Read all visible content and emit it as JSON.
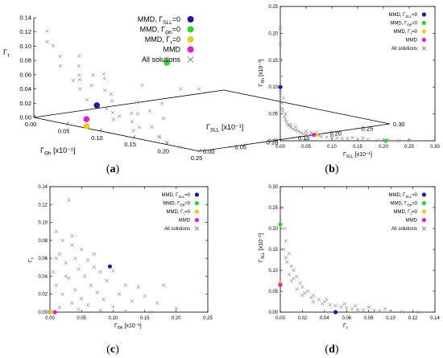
{
  "legend_entries": [
    {
      "main": "MMD, Γ",
      "sub": "SLL",
      "post": "=0",
      "color": "#1a1aa6"
    },
    {
      "main": "MMD, Γ",
      "sub": "Θh",
      "post": "=0",
      "color": "#2bd62b"
    },
    {
      "main": "MMD, Γ",
      "sub": "τ",
      "post": "=0",
      "color": "#f2c81a"
    },
    {
      "main": "MMD",
      "sub": "",
      "post": "",
      "color": "#e020c8"
    },
    {
      "main": "All solutions",
      "sub": "",
      "post": "",
      "color": "#888888",
      "marker": "x"
    }
  ],
  "chart_data": [
    {
      "panel": "(a)",
      "type": "scatter",
      "projection": "3d",
      "axes": {
        "z": {
          "label": "Γτ",
          "range": [
            0,
            0.14
          ],
          "ticks": [
            "0.00",
            "0.02",
            "0.04",
            "0.06",
            "0.08",
            "0.10",
            "0.12",
            "0.14"
          ]
        },
        "x": {
          "label": "ΓΘh [x10⁻¹]",
          "range": [
            0,
            0.25
          ],
          "ticks": [
            "0.00",
            "0.05",
            "0.10",
            "0.15",
            "0.20",
            "0.25"
          ]
        },
        "y": {
          "label": "ΓSLL [x10⁻¹]",
          "range": [
            0,
            0.3
          ],
          "ticks": [
            "0.00",
            "0.05",
            "0.10",
            "0.15",
            "0.20",
            "0.25",
            "0.30"
          ]
        }
      },
      "series": [
        {
          "name": "MMD, ΓSLL=0",
          "points": [
            [
              0.095,
              0.0,
              0.035
            ]
          ]
        },
        {
          "name": "MMD, ΓΘh=0",
          "points": [
            [
              0.0,
              0.21,
              0.05
            ]
          ]
        },
        {
          "name": "MMD, Γτ=0",
          "points": [
            [
              0.07,
              0.01,
              0.0
            ]
          ]
        },
        {
          "name": "MMD",
          "points": [
            [
              0.065,
              0.015,
              0.008
            ]
          ]
        },
        {
          "name": "All solutions",
          "marker": "x",
          "points": [
            [
              0.02,
              0.0,
              0.125
            ],
            [
              0.03,
              0.01,
              0.09
            ],
            [
              0.01,
              0.02,
              0.1
            ],
            [
              0.04,
              0.0,
              0.08
            ],
            [
              0.05,
              0.02,
              0.06
            ],
            [
              0.02,
              0.05,
              0.07
            ],
            [
              0.06,
              0.01,
              0.05
            ],
            [
              0.03,
              0.04,
              0.06
            ],
            [
              0.08,
              0.0,
              0.04
            ],
            [
              0.01,
              0.1,
              0.05
            ],
            [
              0.05,
              0.06,
              0.04
            ],
            [
              0.1,
              0.01,
              0.03
            ],
            [
              0.04,
              0.08,
              0.03
            ],
            [
              0.12,
              0.0,
              0.02
            ],
            [
              0.07,
              0.05,
              0.03
            ],
            [
              0.02,
              0.15,
              0.03
            ],
            [
              0.09,
              0.03,
              0.02
            ],
            [
              0.15,
              0.0,
              0.01
            ],
            [
              0.06,
              0.1,
              0.02
            ],
            [
              0.11,
              0.04,
              0.01
            ],
            [
              0.03,
              0.2,
              0.02
            ],
            [
              0.18,
              0.01,
              0.005
            ],
            [
              0.08,
              0.08,
              0.01
            ],
            [
              0.13,
              0.05,
              0.005
            ],
            [
              0.01,
              0.25,
              0.01
            ],
            [
              0.22,
              0.0,
              0.0
            ],
            [
              0.05,
              0.15,
              0.01
            ],
            [
              0.1,
              0.1,
              0.005
            ],
            [
              0.16,
              0.03,
              0.0
            ],
            [
              0.03,
              0.08,
              0.05
            ],
            [
              0.07,
              0.02,
              0.07
            ],
            [
              0.04,
              0.03,
              0.09
            ],
            [
              0.02,
              0.07,
              0.04
            ],
            [
              0.09,
              0.06,
              0.015
            ],
            [
              0.14,
              0.02,
              0.01
            ],
            [
              0.06,
              0.12,
              0.005
            ],
            [
              0.02,
              0.0,
              0.11
            ],
            [
              0.05,
              0.01,
              0.06
            ],
            [
              0.11,
              0.02,
              0.02
            ],
            [
              0.19,
              0.01,
              0.0
            ]
          ]
        }
      ]
    },
    {
      "panel": "(b)",
      "type": "scatter",
      "xlabel": "ΓSLL [x10⁻¹]",
      "ylabel": "ΓΘh [x10⁻¹]",
      "xlim": [
        0,
        0.3
      ],
      "ylim": [
        0,
        0.25
      ],
      "xticks": [
        "0.00",
        "0.05",
        "0.10",
        "0.15",
        "0.20",
        "0.25",
        "0.30"
      ],
      "yticks": [
        "0.00",
        "0.05",
        "0.10",
        "0.15",
        "0.20",
        "0.25"
      ],
      "series": [
        {
          "name": "MMD, ΓSLL=0",
          "points": [
            [
              0.0,
              0.1
            ]
          ]
        },
        {
          "name": "MMD, ΓΘh=0",
          "points": [
            [
              0.205,
              0.0
            ]
          ]
        },
        {
          "name": "MMD, Γτ=0",
          "points": [
            [
              0.07,
              0.012
            ]
          ]
        },
        {
          "name": "MMD",
          "points": [
            [
              0.065,
              0.011
            ]
          ]
        },
        {
          "name": "All solutions",
          "marker": "x",
          "points": [
            [
              0.0,
              0.21
            ],
            [
              0.0,
              0.18
            ],
            [
              0.0,
              0.15
            ],
            [
              0.002,
              0.12
            ],
            [
              0.0,
              0.09
            ],
            [
              0.003,
              0.07
            ],
            [
              0.005,
              0.055
            ],
            [
              0.008,
              0.045
            ],
            [
              0.01,
              0.04
            ],
            [
              0.012,
              0.035
            ],
            [
              0.015,
              0.03
            ],
            [
              0.018,
              0.028
            ],
            [
              0.02,
              0.025
            ],
            [
              0.025,
              0.022
            ],
            [
              0.03,
              0.02
            ],
            [
              0.035,
              0.018
            ],
            [
              0.04,
              0.015
            ],
            [
              0.045,
              0.013
            ],
            [
              0.05,
              0.012
            ],
            [
              0.055,
              0.01
            ],
            [
              0.06,
              0.015
            ],
            [
              0.075,
              0.01
            ],
            [
              0.08,
              0.008
            ],
            [
              0.09,
              0.007
            ],
            [
              0.1,
              0.006
            ],
            [
              0.11,
              0.005
            ],
            [
              0.12,
              0.004
            ],
            [
              0.13,
              0.004
            ],
            [
              0.15,
              0.003
            ],
            [
              0.17,
              0.002
            ],
            [
              0.19,
              0.001
            ],
            [
              0.21,
              0.001
            ],
            [
              0.23,
              0.0
            ],
            [
              0.25,
              0.0
            ],
            [
              0.02,
              0.03
            ],
            [
              0.03,
              0.026
            ],
            [
              0.05,
              0.018
            ],
            [
              0.07,
              0.016
            ],
            [
              0.1,
              0.01
            ],
            [
              0.14,
              0.006
            ],
            [
              0.16,
              0.005
            ],
            [
              0.004,
              0.06
            ],
            [
              0.01,
              0.05
            ],
            [
              0.006,
              0.08
            ]
          ]
        }
      ]
    },
    {
      "panel": "(c)",
      "type": "scatter",
      "xlabel": "ΓΘh [x10⁻¹]",
      "ylabel": "Γτ",
      "xlim": [
        0,
        0.25
      ],
      "ylim": [
        0,
        0.14
      ],
      "xticks": [
        "0.00",
        "0.05",
        "0.10",
        "0.15",
        "0.20",
        "0.25"
      ],
      "yticks": [
        "0.00",
        "0.02",
        "0.04",
        "0.06",
        "0.08",
        "0.10",
        "0.12",
        "0.14"
      ],
      "series": [
        {
          "name": "MMD, ΓSLL=0",
          "points": [
            [
              0.095,
              0.051
            ]
          ]
        },
        {
          "name": "MMD, ΓΘh=0",
          "points": [
            [
              0.0,
              0.0
            ]
          ]
        },
        {
          "name": "MMD, Γτ=0",
          "points": [
            [
              0.002,
              0.0
            ]
          ]
        },
        {
          "name": "MMD",
          "points": [
            [
              0.008,
              0.0
            ]
          ]
        },
        {
          "name": "All solutions",
          "marker": "x",
          "points": [
            [
              0.03,
              0.125
            ],
            [
              0.01,
              0.09
            ],
            [
              0.02,
              0.08
            ],
            [
              0.035,
              0.075
            ],
            [
              0.05,
              0.07
            ],
            [
              0.015,
              0.065
            ],
            [
              0.04,
              0.06
            ],
            [
              0.06,
              0.058
            ],
            [
              0.025,
              0.055
            ],
            [
              0.07,
              0.05
            ],
            [
              0.045,
              0.048
            ],
            [
              0.08,
              0.045
            ],
            [
              0.1,
              0.046
            ],
            [
              0.055,
              0.04
            ],
            [
              0.03,
              0.038
            ],
            [
              0.09,
              0.035
            ],
            [
              0.12,
              0.03
            ],
            [
              0.065,
              0.03
            ],
            [
              0.14,
              0.028
            ],
            [
              0.04,
              0.025
            ],
            [
              0.075,
              0.022
            ],
            [
              0.11,
              0.02
            ],
            [
              0.15,
              0.018
            ],
            [
              0.02,
              0.02
            ],
            [
              0.05,
              0.015
            ],
            [
              0.085,
              0.014
            ],
            [
              0.13,
              0.012
            ],
            [
              0.17,
              0.01
            ],
            [
              0.035,
              0.01
            ],
            [
              0.06,
              0.008
            ],
            [
              0.1,
              0.006
            ],
            [
              0.2,
              0.004
            ],
            [
              0.015,
              0.005
            ],
            [
              0.045,
              0.003
            ],
            [
              0.08,
              0.002
            ],
            [
              0.12,
              0.001
            ],
            [
              0.16,
              0.0
            ],
            [
              0.01,
              0.03
            ],
            [
              0.025,
              0.04
            ],
            [
              0.005,
              0.045
            ],
            [
              0.07,
              0.065
            ],
            [
              0.18,
              0.03
            ],
            [
              0.035,
              0.085
            ],
            [
              0.01,
              0.06
            ]
          ]
        }
      ]
    },
    {
      "panel": "(d)",
      "type": "scatter",
      "xlabel": "Γτ",
      "ylabel": "ΓSLL [x10⁻¹]",
      "xlim": [
        0,
        0.14
      ],
      "ylim": [
        0,
        0.3
      ],
      "xticks": [
        "0.00",
        "0.02",
        "0.04",
        "0.06",
        "0.08",
        "0.10",
        "0.12",
        "0.14"
      ],
      "yticks": [
        "0.00",
        "0.05",
        "0.10",
        "0.15",
        "0.20",
        "0.25",
        "0.30"
      ],
      "series": [
        {
          "name": "MMD, ΓSLL=0",
          "points": [
            [
              0.05,
              0.0
            ]
          ]
        },
        {
          "name": "MMD, ΓΘh=0",
          "points": [
            [
              0.0,
              0.21
            ]
          ]
        },
        {
          "name": "MMD, Γτ=0",
          "points": [
            [
              0.0,
              0.07
            ]
          ]
        },
        {
          "name": "MMD",
          "points": [
            [
              0.0,
              0.065
            ]
          ]
        },
        {
          "name": "All solutions",
          "marker": "x",
          "points": [
            [
              0.002,
              0.25
            ],
            [
              0.004,
              0.2
            ],
            [
              0.005,
              0.17
            ],
            [
              0.003,
              0.15
            ],
            [
              0.008,
              0.14
            ],
            [
              0.006,
              0.12
            ],
            [
              0.01,
              0.11
            ],
            [
              0.012,
              0.1
            ],
            [
              0.008,
              0.09
            ],
            [
              0.015,
              0.085
            ],
            [
              0.01,
              0.075
            ],
            [
              0.018,
              0.07
            ],
            [
              0.02,
              0.06
            ],
            [
              0.015,
              0.055
            ],
            [
              0.025,
              0.05
            ],
            [
              0.022,
              0.045
            ],
            [
              0.03,
              0.04
            ],
            [
              0.028,
              0.035
            ],
            [
              0.035,
              0.03
            ],
            [
              0.04,
              0.025
            ],
            [
              0.038,
              0.02
            ],
            [
              0.045,
              0.018
            ],
            [
              0.05,
              0.015
            ],
            [
              0.055,
              0.012
            ],
            [
              0.06,
              0.01
            ],
            [
              0.065,
              0.008
            ],
            [
              0.07,
              0.006
            ],
            [
              0.075,
              0.005
            ],
            [
              0.08,
              0.012
            ],
            [
              0.085,
              0.004
            ],
            [
              0.09,
              0.003
            ],
            [
              0.1,
              0.002
            ],
            [
              0.11,
              0.001
            ],
            [
              0.125,
              0.0
            ],
            [
              0.005,
              0.13
            ],
            [
              0.012,
              0.08
            ],
            [
              0.02,
              0.04
            ],
            [
              0.03,
              0.025
            ],
            [
              0.042,
              0.03
            ],
            [
              0.058,
              0.02
            ],
            [
              0.068,
              0.015
            ],
            [
              0.095,
              0.008
            ]
          ]
        }
      ]
    }
  ],
  "panel_labels": [
    "(a)",
    "(b)",
    "(c)",
    "(d)"
  ]
}
